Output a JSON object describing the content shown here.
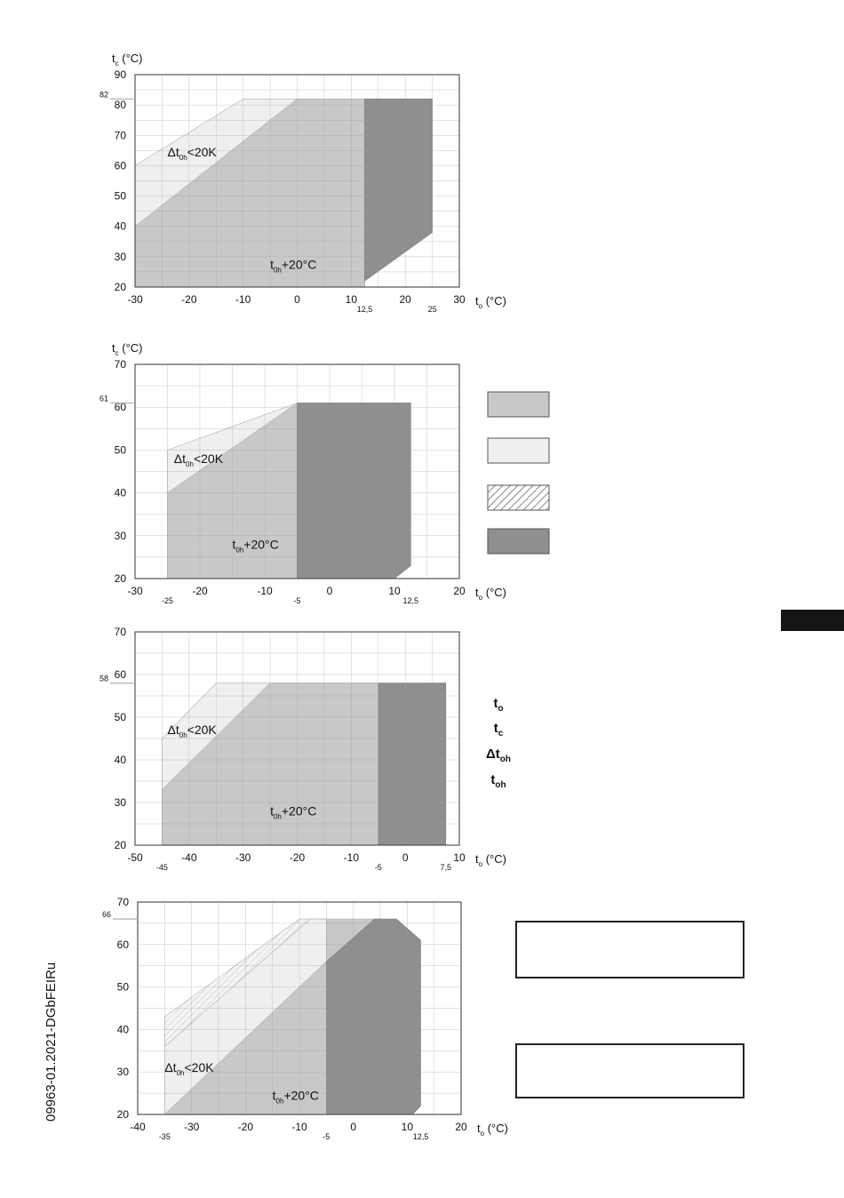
{
  "document_code": "09963-01.2021-DGbFEIRu",
  "colors": {
    "zone_main": "#c8c8c8",
    "zone_light": "#efefef",
    "zone_dark": "#8f8f8f",
    "grid": "#d6d6d6",
    "hatch": "#555555"
  },
  "legend": {
    "swatches": [
      "zone_main",
      "zone_light",
      "zone_hatch",
      "zone_dark"
    ],
    "symbols": [
      {
        "base": "t",
        "sub": "o"
      },
      {
        "base": "t",
        "sub": "c"
      },
      {
        "base": "Δt",
        "sub": "oh"
      },
      {
        "base": "t",
        "sub": "oh"
      }
    ]
  },
  "chart_data": [
    {
      "type": "area",
      "xlabel": {
        "base": "t",
        "sub": "o",
        "unit": "(°C)"
      },
      "ylabel": {
        "base": "t",
        "sub": "c",
        "unit": "(°C)"
      },
      "xlim": [
        -30,
        30
      ],
      "ylim": [
        20,
        90
      ],
      "xticks": [
        "-30",
        "-20",
        "-10",
        "0",
        "10",
        "20",
        "30"
      ],
      "yticks": [
        "20",
        "30",
        "40",
        "50",
        "60",
        "70",
        "80",
        "90"
      ],
      "extra_x_labels": [
        {
          "x": 12.5,
          "label": "12,5"
        },
        {
          "x": 25,
          "label": "25"
        }
      ],
      "extra_y_labels": [
        {
          "y": 82,
          "label": "82"
        }
      ],
      "annotations": [
        {
          "base": "Δt",
          "sub": "0h",
          "rest": "<20K",
          "x": -24,
          "y": 63
        },
        {
          "base": "t",
          "sub": "0h",
          "rest": "+20°C",
          "x": -5,
          "y": 26
        }
      ],
      "zones": [
        {
          "kind": "light",
          "polygon": [
            [
              -30,
              60
            ],
            [
              -10,
              82
            ],
            [
              12.5,
              82
            ],
            [
              12.5,
              20
            ],
            [
              -30,
              20
            ]
          ]
        },
        {
          "kind": "main",
          "polygon": [
            [
              -30,
              40
            ],
            [
              0,
              82
            ],
            [
              12.5,
              82
            ],
            [
              12.5,
              20
            ],
            [
              -30,
              20
            ]
          ]
        },
        {
          "kind": "dark",
          "polygon": [
            [
              12.5,
              82
            ],
            [
              25,
              82
            ],
            [
              25,
              38
            ],
            [
              12.5,
              22
            ]
          ]
        }
      ]
    },
    {
      "type": "area",
      "xlabel": {
        "base": "t",
        "sub": "o",
        "unit": "(°C)"
      },
      "ylabel": {
        "base": "t",
        "sub": "c",
        "unit": "(°C)"
      },
      "xlim": [
        -30,
        20
      ],
      "ylim": [
        20,
        70
      ],
      "xticks": [
        "-30",
        "-20",
        "-10",
        "0",
        "10",
        "20"
      ],
      "yticks": [
        "20",
        "30",
        "40",
        "50",
        "60",
        "70"
      ],
      "extra_x_labels": [
        {
          "x": -25,
          "label": "-25"
        },
        {
          "x": -5,
          "label": "-5"
        },
        {
          "x": 12.5,
          "label": "12,5"
        }
      ],
      "extra_y_labels": [
        {
          "y": 61,
          "label": "61"
        }
      ],
      "annotations": [
        {
          "base": "Δt",
          "sub": "0h",
          "rest": "<20K",
          "x": -24,
          "y": 47
        },
        {
          "base": "t",
          "sub": "0h",
          "rest": "+20°C",
          "x": -15,
          "y": 27
        }
      ],
      "zones": [
        {
          "kind": "light",
          "polygon": [
            [
              -25,
              50
            ],
            [
              -5,
              61
            ],
            [
              -5,
              20
            ],
            [
              -25,
              20
            ]
          ]
        },
        {
          "kind": "main",
          "polygon": [
            [
              -25,
              40
            ],
            [
              -5,
              61
            ],
            [
              -5,
              20
            ],
            [
              -25,
              20
            ]
          ]
        },
        {
          "kind": "dark",
          "polygon": [
            [
              -5,
              61
            ],
            [
              12.5,
              61
            ],
            [
              12.5,
              23
            ],
            [
              10,
              20
            ],
            [
              -5,
              20
            ]
          ]
        }
      ]
    },
    {
      "type": "area",
      "xlabel": {
        "base": "t",
        "sub": "o",
        "unit": "(°C)"
      },
      "ylabel": {
        "base": "t",
        "sub": "c",
        "unit": "(°C)"
      },
      "xlim": [
        -50,
        10
      ],
      "ylim": [
        20,
        70
      ],
      "xticks": [
        "-50",
        "-40",
        "-30",
        "-20",
        "-10",
        "0",
        "10"
      ],
      "yticks": [
        "20",
        "30",
        "40",
        "50",
        "60",
        "70"
      ],
      "extra_x_labels": [
        {
          "x": -45,
          "label": "-45"
        },
        {
          "x": -5,
          "label": "-5"
        },
        {
          "x": 7.5,
          "label": "7,5"
        }
      ],
      "extra_y_labels": [
        {
          "y": 58,
          "label": "58"
        }
      ],
      "annotations": [
        {
          "base": "Δt",
          "sub": "0h",
          "rest": "<20K",
          "x": -44,
          "y": 46
        },
        {
          "base": "t",
          "sub": "0h",
          "rest": "+20°C",
          "x": -25,
          "y": 27
        }
      ],
      "zones": [
        {
          "kind": "light",
          "polygon": [
            [
              -45,
              45
            ],
            [
              -35,
              58
            ],
            [
              -5,
              58
            ],
            [
              -5,
              20
            ],
            [
              -45,
              20
            ]
          ]
        },
        {
          "kind": "main",
          "polygon": [
            [
              -45,
              33
            ],
            [
              -25,
              58
            ],
            [
              -5,
              58
            ],
            [
              -5,
              20
            ],
            [
              -45,
              20
            ]
          ]
        },
        {
          "kind": "dark",
          "polygon": [
            [
              -5,
              58
            ],
            [
              7.5,
              58
            ],
            [
              7.5,
              20
            ],
            [
              -5,
              20
            ]
          ]
        }
      ]
    },
    {
      "type": "area",
      "xlabel": {
        "base": "t",
        "sub": "o",
        "unit": "(°C)"
      },
      "ylabel": {
        "base": "t",
        "sub": "c",
        "unit": "(°C)"
      },
      "xlim": [
        -40,
        20
      ],
      "ylim": [
        20,
        70
      ],
      "xticks": [
        "-40",
        "-30",
        "-20",
        "-10",
        "0",
        "10",
        "20"
      ],
      "yticks": [
        "20",
        "30",
        "40",
        "50",
        "60",
        "70"
      ],
      "extra_x_labels": [
        {
          "x": -35,
          "label": "-35"
        },
        {
          "x": -5,
          "label": "-5"
        },
        {
          "x": 12.5,
          "label": "12,5"
        }
      ],
      "extra_y_labels": [
        {
          "y": 66,
          "label": "66"
        }
      ],
      "annotations": [
        {
          "base": "Δt",
          "sub": "0h",
          "rest": "<20K",
          "x": -35,
          "y": 30
        },
        {
          "base": "t",
          "sub": "0h",
          "rest": "+20°C",
          "x": -15,
          "y": 23.5
        }
      ],
      "zones": [
        {
          "kind": "hatch",
          "polygon": [
            [
              -35,
              43
            ],
            [
              -10,
              66
            ],
            [
              -5,
              66
            ],
            [
              -5,
              30
            ],
            [
              -35,
              30
            ]
          ]
        },
        {
          "kind": "light",
          "polygon": [
            [
              -35,
              36
            ],
            [
              -8,
              66
            ],
            [
              -5,
              66
            ],
            [
              -5,
              20
            ],
            [
              -35,
              20
            ]
          ]
        },
        {
          "kind": "main",
          "polygon": [
            [
              -35,
              20
            ],
            [
              -5,
              56
            ],
            [
              -5,
              20
            ]
          ]
        },
        {
          "kind": "main",
          "polygon": [
            [
              -5,
              56
            ],
            [
              -5,
              66
            ],
            [
              5,
              66
            ],
            [
              5,
              20
            ],
            [
              -5,
              20
            ]
          ]
        },
        {
          "kind": "dark",
          "polygon": [
            [
              -5,
              56
            ],
            [
              4,
              66
            ],
            [
              8,
              66
            ],
            [
              12.5,
              61
            ],
            [
              12.5,
              22
            ],
            [
              11,
              20
            ],
            [
              -5,
              20
            ]
          ]
        }
      ]
    }
  ]
}
